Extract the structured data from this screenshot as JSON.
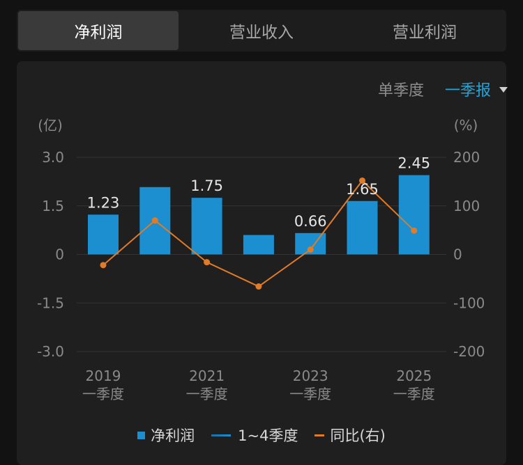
{
  "tabs": [
    {
      "label": "净利润",
      "active": true
    },
    {
      "label": "营业收入",
      "active": false
    },
    {
      "label": "营业利润",
      "active": false
    }
  ],
  "controls": {
    "mode_label": "单季度",
    "period_selected": "一季报"
  },
  "chart_data": {
    "type": "bar",
    "categories": [
      "2019\n一季度",
      "2020\n一季度",
      "2021\n一季度",
      "2022\n一季度",
      "2023\n一季度",
      "2024\n一季度",
      "2025\n一季度"
    ],
    "x_tick_labels_shown": [
      "2019\n一季度",
      "",
      "2021\n一季度",
      "",
      "2023\n一季度",
      "",
      "2025\n一季度"
    ],
    "ylabel_left": "(亿)",
    "ylabel_right": "(%)",
    "ylim_left": [
      -3.0,
      3.0
    ],
    "ylim_right": [
      -200,
      200
    ],
    "yticks_left": [
      "3.0",
      "1.5",
      "0",
      "-1.5",
      "-3.0"
    ],
    "yticks_right": [
      "200",
      "100",
      "0",
      "-100",
      "-200"
    ],
    "series": [
      {
        "name": "净利润",
        "kind": "bar",
        "axis": "left",
        "color": "#1b8fcf",
        "values": [
          1.23,
          2.08,
          1.75,
          0.6,
          0.66,
          1.65,
          2.45
        ],
        "data_labels": [
          "1.23",
          "",
          "1.75",
          "",
          "0.66",
          "1.65",
          "2.45"
        ]
      },
      {
        "name": "同比(右)",
        "kind": "line",
        "axis": "right",
        "color": "#e07b27",
        "values": [
          -22,
          70,
          -16,
          -66,
          10,
          152,
          49
        ]
      }
    ],
    "legend": [
      "净利润",
      "1~4季度",
      "同比(右)"
    ],
    "grid": true,
    "legend_position": "bottom"
  }
}
